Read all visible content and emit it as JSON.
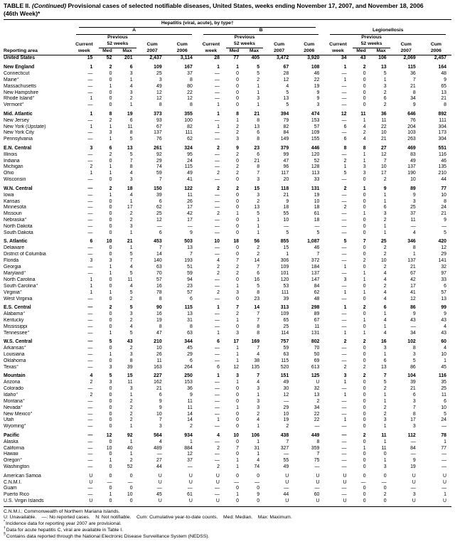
{
  "title": {
    "prefix": "TABLE II. ",
    "continued": "(Continued)",
    "rest": " Provisional cases of selected notifiable diseases, United States, weeks ending November 17, 2007, and November 18, 2006",
    "line2": "(46th Week)*"
  },
  "header": {
    "reporting_area": "Reporting area",
    "hepatitis_group": "Hepatitis (viral, acute), by type†",
    "type_a": "A",
    "type_b": "B",
    "legionellosis": "Legionellosis",
    "previous": "Previous",
    "weeks52": "52 weeks",
    "current": "Current",
    "week": "week",
    "med": "Med",
    "max": "Max",
    "cum": "Cum",
    "y2007": "2007",
    "y2006": "2006"
  },
  "rows": [
    {
      "area": "United States",
      "bold": true,
      "values": [
        "15",
        "52",
        "201",
        "2,437",
        "3,114",
        "28",
        "77",
        "405",
        "3,472",
        "3,920",
        "34",
        "43",
        "106",
        "2,069",
        "2,457"
      ]
    },
    {
      "area": "New England",
      "bold": true,
      "gap": true,
      "values": [
        "1",
        "2",
        "6",
        "109",
        "167",
        "1",
        "1",
        "5",
        "67",
        "108",
        "1",
        "2",
        "13",
        "115",
        "164"
      ]
    },
    {
      "area": "Connecticut",
      "values": [
        "—",
        "0",
        "3",
        "25",
        "37",
        "—",
        "0",
        "5",
        "28",
        "46",
        "—",
        "0",
        "5",
        "36",
        "48"
      ]
    },
    {
      "area": "Maine",
      "sup": "§",
      "values": [
        "—",
        "0",
        "1",
        "3",
        "8",
        "—",
        "0",
        "2",
        "12",
        "22",
        "1",
        "0",
        "1",
        "7",
        "9"
      ]
    },
    {
      "area": "Massachusetts",
      "values": [
        "—",
        "1",
        "4",
        "49",
        "80",
        "—",
        "0",
        "1",
        "4",
        "19",
        "—",
        "0",
        "3",
        "21",
        "65"
      ]
    },
    {
      "area": "New Hampshire",
      "values": [
        "—",
        "0",
        "3",
        "12",
        "22",
        "—",
        "0",
        "1",
        "5",
        "9",
        "—",
        "0",
        "2",
        "8",
        "13"
      ]
    },
    {
      "area": "Rhode Island",
      "sup": "§",
      "values": [
        "1",
        "0",
        "2",
        "12",
        "12",
        "—",
        "0",
        "3",
        "13",
        "9",
        "—",
        "0",
        "6",
        "34",
        "21"
      ]
    },
    {
      "area": "Vermont",
      "sup": "§",
      "values": [
        "—",
        "0",
        "1",
        "8",
        "8",
        "1",
        "0",
        "1",
        "5",
        "3",
        "—",
        "0",
        "2",
        "9",
        "8"
      ]
    },
    {
      "area": "Mid. Atlantic",
      "bold": true,
      "gap": true,
      "values": [
        "1",
        "8",
        "19",
        "373",
        "355",
        "1",
        "8",
        "21",
        "394",
        "474",
        "12",
        "11",
        "36",
        "646",
        "892"
      ]
    },
    {
      "area": "New Jersey",
      "values": [
        "—",
        "2",
        "6",
        "93",
        "100",
        "—",
        "1",
        "8",
        "79",
        "153",
        "—",
        "1",
        "11",
        "76",
        "111"
      ]
    },
    {
      "area": "New York (Upstate)",
      "values": [
        "1",
        "1",
        "11",
        "67",
        "82",
        "1",
        "2",
        "13",
        "82",
        "57",
        "6",
        "4",
        "22",
        "204",
        "304"
      ]
    },
    {
      "area": "New York City",
      "values": [
        "—",
        "3",
        "8",
        "137",
        "111",
        "—",
        "2",
        "6",
        "84",
        "109",
        "—",
        "2",
        "10",
        "103",
        "173"
      ]
    },
    {
      "area": "Pennsylvania",
      "values": [
        "—",
        "1",
        "5",
        "76",
        "62",
        "—",
        "3",
        "8",
        "149",
        "155",
        "6",
        "4",
        "21",
        "263",
        "304"
      ]
    },
    {
      "area": "E.N. Central",
      "bold": true,
      "gap": true,
      "values": [
        "3",
        "6",
        "13",
        "261",
        "324",
        "2",
        "9",
        "23",
        "379",
        "446",
        "8",
        "8",
        "27",
        "469",
        "551"
      ]
    },
    {
      "area": "Illinois",
      "values": [
        "—",
        "2",
        "5",
        "92",
        "95",
        "—",
        "2",
        "6",
        "99",
        "120",
        "—",
        "1",
        "12",
        "83",
        "116"
      ]
    },
    {
      "area": "Indiana",
      "values": [
        "—",
        "0",
        "7",
        "29",
        "24",
        "—",
        "0",
        "21",
        "47",
        "52",
        "2",
        "1",
        "7",
        "49",
        "46"
      ]
    },
    {
      "area": "Michigan",
      "values": [
        "2",
        "1",
        "8",
        "74",
        "115",
        "—",
        "2",
        "8",
        "96",
        "128",
        "1",
        "3",
        "10",
        "137",
        "135"
      ]
    },
    {
      "area": "Ohio",
      "values": [
        "1",
        "1",
        "4",
        "59",
        "49",
        "2",
        "2",
        "7",
        "117",
        "113",
        "5",
        "3",
        "17",
        "190",
        "210"
      ]
    },
    {
      "area": "Wisconsin",
      "values": [
        "—",
        "0",
        "3",
        "7",
        "41",
        "—",
        "0",
        "3",
        "20",
        "33",
        "—",
        "0",
        "2",
        "10",
        "44"
      ]
    },
    {
      "area": "W.N. Central",
      "bold": true,
      "gap": true,
      "values": [
        "—",
        "2",
        "18",
        "150",
        "122",
        "2",
        "2",
        "15",
        "118",
        "131",
        "2",
        "1",
        "9",
        "89",
        "77"
      ]
    },
    {
      "area": "Iowa",
      "values": [
        "—",
        "1",
        "4",
        "39",
        "11",
        "—",
        "0",
        "3",
        "21",
        "19",
        "—",
        "0",
        "1",
        "9",
        "10"
      ]
    },
    {
      "area": "Kansas",
      "values": [
        "—",
        "0",
        "1",
        "6",
        "26",
        "—",
        "0",
        "2",
        "9",
        "10",
        "—",
        "0",
        "1",
        "3",
        "8"
      ]
    },
    {
      "area": "Minnesota",
      "values": [
        "—",
        "0",
        "17",
        "62",
        "17",
        "—",
        "0",
        "13",
        "18",
        "18",
        "2",
        "0",
        "6",
        "25",
        "24"
      ]
    },
    {
      "area": "Missouri",
      "values": [
        "—",
        "0",
        "2",
        "25",
        "42",
        "2",
        "1",
        "5",
        "55",
        "61",
        "—",
        "1",
        "3",
        "37",
        "21"
      ]
    },
    {
      "area": "Nebraska",
      "sup": "§",
      "values": [
        "—",
        "0",
        "2",
        "12",
        "17",
        "—",
        "0",
        "1",
        "10",
        "18",
        "—",
        "0",
        "2",
        "11",
        "9"
      ]
    },
    {
      "area": "North Dakota",
      "values": [
        "—",
        "0",
        "3",
        "—",
        "—",
        "—",
        "0",
        "1",
        "—",
        "—",
        "—",
        "0",
        "1",
        "—",
        "—"
      ]
    },
    {
      "area": "South Dakota",
      "values": [
        "—",
        "0",
        "1",
        "6",
        "9",
        "—",
        "0",
        "1",
        "5",
        "5",
        "—",
        "0",
        "1",
        "4",
        "5"
      ]
    },
    {
      "area": "S. Atlantic",
      "bold": true,
      "gap": true,
      "values": [
        "6",
        "10",
        "21",
        "453",
        "503",
        "10",
        "18",
        "56",
        "855",
        "1,087",
        "5",
        "7",
        "25",
        "346",
        "420"
      ]
    },
    {
      "area": "Delaware",
      "values": [
        "—",
        "0",
        "1",
        "7",
        "13",
        "—",
        "0",
        "2",
        "15",
        "46",
        "—",
        "0",
        "2",
        "8",
        "12"
      ]
    },
    {
      "area": "District of Columbia",
      "values": [
        "—",
        "0",
        "5",
        "14",
        "7",
        "—",
        "0",
        "2",
        "1",
        "7",
        "—",
        "0",
        "2",
        "1",
        "29"
      ]
    },
    {
      "area": "Florida",
      "values": [
        "3",
        "3",
        "7",
        "140",
        "193",
        "4",
        "7",
        "14",
        "306",
        "372",
        "—",
        "2",
        "10",
        "137",
        "141"
      ]
    },
    {
      "area": "Georgia",
      "values": [
        "—",
        "1",
        "4",
        "63",
        "51",
        "2",
        "2",
        "7",
        "109",
        "184",
        "1",
        "0",
        "2",
        "21",
        "32"
      ]
    },
    {
      "area": "Maryland",
      "sup": "§",
      "values": [
        "—",
        "1",
        "5",
        "70",
        "59",
        "2",
        "2",
        "6",
        "101",
        "137",
        "—",
        "1",
        "4",
        "67",
        "97"
      ]
    },
    {
      "area": "North Carolina",
      "values": [
        "1",
        "0",
        "11",
        "57",
        "94",
        "—",
        "0",
        "16",
        "120",
        "147",
        "3",
        "1",
        "4",
        "42",
        "33"
      ]
    },
    {
      "area": "South Carolina",
      "sup": "§",
      "values": [
        "1",
        "0",
        "4",
        "16",
        "23",
        "—",
        "1",
        "5",
        "53",
        "84",
        "—",
        "0",
        "2",
        "17",
        "6"
      ]
    },
    {
      "area": "Virginia",
      "sup": "§",
      "values": [
        "1",
        "1",
        "5",
        "78",
        "57",
        "2",
        "3",
        "8",
        "111",
        "62",
        "1",
        "1",
        "4",
        "41",
        "57"
      ]
    },
    {
      "area": "West Virginia",
      "values": [
        "—",
        "0",
        "2",
        "8",
        "6",
        "—",
        "0",
        "23",
        "39",
        "48",
        "—",
        "0",
        "4",
        "12",
        "13"
      ]
    },
    {
      "area": "E.S. Central",
      "bold": true,
      "gap": true,
      "values": [
        "—",
        "2",
        "5",
        "90",
        "115",
        "1",
        "7",
        "14",
        "313",
        "298",
        "1",
        "2",
        "6",
        "86",
        "99"
      ]
    },
    {
      "area": "Alabama",
      "sup": "§",
      "values": [
        "—",
        "0",
        "3",
        "16",
        "13",
        "—",
        "2",
        "7",
        "109",
        "89",
        "—",
        "0",
        "1",
        "9",
        "9"
      ]
    },
    {
      "area": "Kentucky",
      "values": [
        "—",
        "0",
        "2",
        "19",
        "31",
        "—",
        "1",
        "7",
        "65",
        "67",
        "—",
        "1",
        "4",
        "43",
        "43"
      ]
    },
    {
      "area": "Mississippi",
      "values": [
        "—",
        "0",
        "4",
        "8",
        "8",
        "—",
        "0",
        "8",
        "25",
        "11",
        "—",
        "0",
        "1",
        "—",
        "4"
      ]
    },
    {
      "area": "Tennessee",
      "sup": "§",
      "values": [
        "—",
        "1",
        "5",
        "47",
        "63",
        "1",
        "3",
        "8",
        "114",
        "131",
        "1",
        "1",
        "4",
        "34",
        "43"
      ]
    },
    {
      "area": "W.S. Central",
      "bold": true,
      "gap": true,
      "values": [
        "—",
        "5",
        "43",
        "210",
        "344",
        "6",
        "17",
        "169",
        "757",
        "802",
        "2",
        "2",
        "16",
        "102",
        "60"
      ]
    },
    {
      "area": "Arkansas",
      "sup": "§",
      "values": [
        "—",
        "0",
        "2",
        "10",
        "45",
        "—",
        "1",
        "7",
        "59",
        "70",
        "—",
        "0",
        "3",
        "8",
        "4"
      ]
    },
    {
      "area": "Louisiana",
      "values": [
        "—",
        "1",
        "3",
        "26",
        "29",
        "—",
        "1",
        "4",
        "63",
        "50",
        "—",
        "0",
        "1",
        "3",
        "10"
      ]
    },
    {
      "area": "Oklahoma",
      "values": [
        "—",
        "0",
        "8",
        "11",
        "6",
        "—",
        "1",
        "38",
        "115",
        "69",
        "—",
        "0",
        "6",
        "5",
        "1"
      ]
    },
    {
      "area": "Texas",
      "sup": "§",
      "values": [
        "—",
        "3",
        "39",
        "163",
        "264",
        "6",
        "12",
        "135",
        "520",
        "613",
        "2",
        "2",
        "13",
        "86",
        "45"
      ]
    },
    {
      "area": "Mountain",
      "bold": true,
      "gap": true,
      "values": [
        "4",
        "5",
        "15",
        "227",
        "250",
        "1",
        "3",
        "7",
        "151",
        "125",
        "3",
        "2",
        "7",
        "104",
        "116"
      ]
    },
    {
      "area": "Arizona",
      "values": [
        "2",
        "3",
        "11",
        "162",
        "153",
        "—",
        "1",
        "4",
        "49",
        "U",
        "1",
        "0",
        "5",
        "39",
        "35"
      ]
    },
    {
      "area": "Colorado",
      "values": [
        "—",
        "0",
        "3",
        "21",
        "36",
        "—",
        "0",
        "3",
        "30",
        "32",
        "—",
        "0",
        "2",
        "21",
        "25"
      ]
    },
    {
      "area": "Idaho",
      "sup": "§",
      "values": [
        "2",
        "0",
        "1",
        "6",
        "9",
        "—",
        "0",
        "1",
        "12",
        "13",
        "1",
        "0",
        "1",
        "6",
        "11"
      ]
    },
    {
      "area": "Montana",
      "sup": "§",
      "values": [
        "—",
        "0",
        "2",
        "9",
        "11",
        "—",
        "0",
        "3",
        "—",
        "2",
        "—",
        "0",
        "1",
        "3",
        "6"
      ]
    },
    {
      "area": "Nevada",
      "sup": "§",
      "values": [
        "—",
        "0",
        "2",
        "9",
        "11",
        "—",
        "1",
        "3",
        "29",
        "34",
        "—",
        "0",
        "2",
        "7",
        "10"
      ]
    },
    {
      "area": "New Mexico",
      "sup": "§",
      "values": [
        "—",
        "0",
        "2",
        "10",
        "14",
        "—",
        "0",
        "2",
        "10",
        "22",
        "—",
        "0",
        "2",
        "8",
        "5"
      ]
    },
    {
      "area": "Utah",
      "values": [
        "—",
        "0",
        "2",
        "7",
        "14",
        "1",
        "0",
        "4",
        "19",
        "22",
        "1",
        "0",
        "3",
        "17",
        "24"
      ]
    },
    {
      "area": "Wyoming",
      "sup": "§",
      "values": [
        "—",
        "0",
        "1",
        "3",
        "2",
        "—",
        "0",
        "1",
        "2",
        "—",
        "—",
        "0",
        "1",
        "3",
        "—"
      ]
    },
    {
      "area": "Pacific",
      "bold": true,
      "gap": true,
      "values": [
        "—",
        "12",
        "92",
        "564",
        "934",
        "4",
        "10",
        "106",
        "438",
        "449",
        "—",
        "2",
        "11",
        "112",
        "78"
      ]
    },
    {
      "area": "Alaska",
      "values": [
        "—",
        "0",
        "1",
        "4",
        "1",
        "—",
        "0",
        "1",
        "7",
        "8",
        "—",
        "0",
        "1",
        "—",
        "1"
      ]
    },
    {
      "area": "California",
      "values": [
        "—",
        "10",
        "40",
        "489",
        "884",
        "2",
        "7",
        "31",
        "327",
        "359",
        "—",
        "1",
        "11",
        "84",
        "77"
      ]
    },
    {
      "area": "Hawaii",
      "values": [
        "—",
        "0",
        "1",
        "—",
        "12",
        "—",
        "0",
        "1",
        "—",
        "7",
        "—",
        "0",
        "0",
        "—",
        "—"
      ]
    },
    {
      "area": "Oregon",
      "sup": "§",
      "values": [
        "—",
        "1",
        "2",
        "27",
        "37",
        "—",
        "1",
        "4",
        "55",
        "75",
        "—",
        "0",
        "1",
        "9",
        "—"
      ]
    },
    {
      "area": "Washington",
      "values": [
        "—",
        "0",
        "52",
        "44",
        "—",
        "2",
        "1",
        "74",
        "49",
        "—",
        "—",
        "0",
        "3",
        "19",
        "—"
      ]
    },
    {
      "area": "American Samoa",
      "gap": true,
      "values": [
        "U",
        "0",
        "0",
        "U",
        "U",
        "U",
        "0",
        "0",
        "U",
        "U",
        "U",
        "0",
        "0",
        "U",
        "U"
      ]
    },
    {
      "area": "C.N.M.I.",
      "values": [
        "U",
        "—",
        "—",
        "U",
        "U",
        "U",
        "—",
        "—",
        "U",
        "U",
        "U",
        "—",
        "—",
        "U",
        "U"
      ]
    },
    {
      "area": "Guam",
      "values": [
        "—",
        "0",
        "0",
        "—",
        "—",
        "—",
        "0",
        "0",
        "—",
        "—",
        "—",
        "0",
        "0",
        "—",
        "—"
      ]
    },
    {
      "area": "Puerto Rico",
      "values": [
        "—",
        "1",
        "10",
        "45",
        "61",
        "—",
        "1",
        "9",
        "44",
        "60",
        "—",
        "0",
        "2",
        "3",
        "1"
      ]
    },
    {
      "area": "U.S. Virgin Islands",
      "values": [
        "U",
        "0",
        "0",
        "U",
        "U",
        "U",
        "0",
        "0",
        "U",
        "U",
        "U",
        "0",
        "0",
        "U",
        "U"
      ]
    }
  ],
  "footnotes": {
    "cnmi": "C.N.M.I.: Commonwealth of Northern Mariana Islands.",
    "legend": "U: Unavailable.    —: No reported cases.    N: Not notifiable.    Cum: Cumulative year-to-date counts.    Med: Median.    Max: Maximum.",
    "notes": [
      {
        "mark": "*",
        "text": "Incidence data for reporting year 2007 are provisional."
      },
      {
        "mark": "†",
        "text": "Data for acute hepatitis C, viral are available in Table I."
      },
      {
        "mark": "§",
        "text": "Contains data reported through the National Electronic Disease Surveillance System (NEDSS)."
      }
    ]
  }
}
